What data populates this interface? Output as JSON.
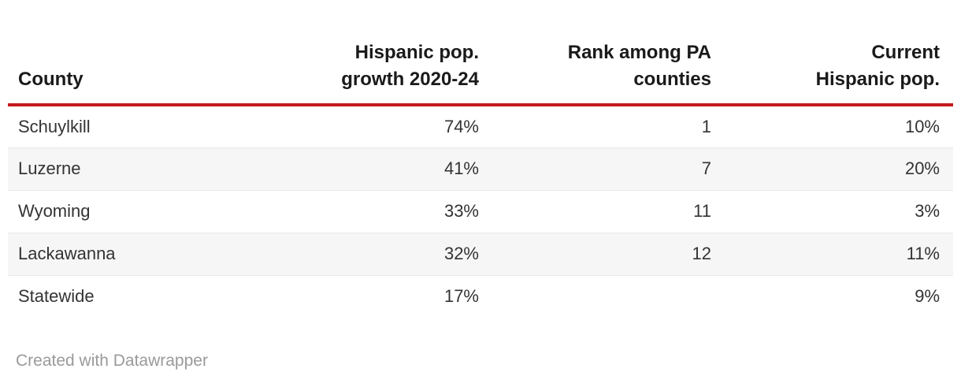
{
  "chart_data": {
    "type": "table",
    "title": "",
    "columns": [
      "County",
      "Hispanic pop. growth 2020-24",
      "Rank among PA counties",
      "Current Hispanic pop."
    ],
    "column_align": [
      "left",
      "right",
      "right",
      "right"
    ],
    "header_lines": [
      [
        "County"
      ],
      [
        "Hispanic pop.",
        "growth 2020-24"
      ],
      [
        "Rank among PA",
        "counties"
      ],
      [
        "Current",
        "Hispanic pop."
      ]
    ],
    "rows": [
      [
        "Schuylkill",
        "74%",
        "1",
        "10%"
      ],
      [
        "Luzerne",
        "41%",
        "7",
        "20%"
      ],
      [
        "Wyoming",
        "33%",
        "11",
        "3%"
      ],
      [
        "Lackawanna",
        "32%",
        "12",
        "11%"
      ],
      [
        "Statewide",
        "17%",
        "",
        "9%"
      ]
    ],
    "layout_hints": {
      "striped_rows": "even",
      "header_rule_color": "#c5191c",
      "grid": "horizontal-only"
    }
  },
  "footer": {
    "credit": "Created with Datawrapper"
  },
  "colors": {
    "header_rule": "#c5191c",
    "header_text": "#1a1a1a",
    "body_text": "#333333",
    "row_stripe": "#f6f6f6",
    "row_border": "#e8e8e8",
    "footer_text": "#9a9a9a",
    "background": "#ffffff"
  }
}
